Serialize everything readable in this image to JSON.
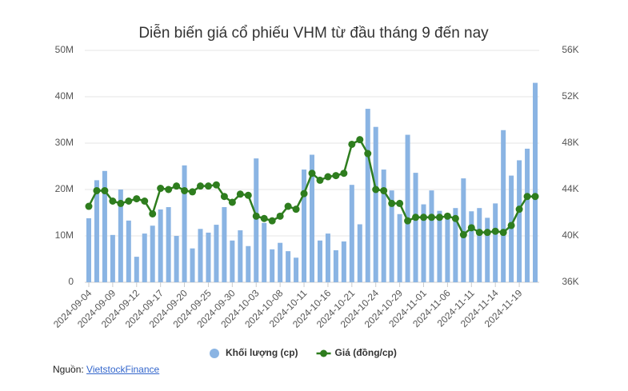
{
  "chart_data": {
    "type": "combo",
    "title": "Diễn biến giá cổ phiếu VHM từ đầu tháng 9 đến nay",
    "categories": [
      "2024-09-04",
      null,
      null,
      "2024-09-09",
      null,
      null,
      "2024-09-12",
      null,
      null,
      "2024-09-17",
      null,
      null,
      "2024-09-20",
      null,
      null,
      "2024-09-25",
      null,
      null,
      "2024-09-30",
      null,
      null,
      "2024-10-03",
      null,
      null,
      "2024-10-08",
      null,
      null,
      "2024-10-11",
      null,
      null,
      "2024-10-16",
      null,
      null,
      "2024-10-21",
      null,
      null,
      "2024-10-24",
      null,
      null,
      "2024-10-29",
      null,
      null,
      "2024-11-01",
      null,
      null,
      "2024-11-06",
      null,
      null,
      "2024-11-11",
      null,
      null,
      "2024-11-14",
      null,
      null,
      "2024-11-19",
      null,
      null
    ],
    "series": [
      {
        "name": "Khối lượng (cp)",
        "type": "bar",
        "axis": "y",
        "color": "#8ab4e3",
        "values": [
          13.8,
          22,
          24,
          10.2,
          20,
          13.3,
          5.5,
          10.5,
          12.2,
          15.7,
          16.2,
          10,
          25.2,
          7.3,
          11.5,
          10.7,
          12.4,
          16.2,
          9,
          11.2,
          7.8,
          26.7,
          12.8,
          7.1,
          8.5,
          6.7,
          5.3,
          24.3,
          27.5,
          9,
          10.5,
          6.9,
          8.8,
          21,
          12.5,
          37.4,
          33.5,
          24.3,
          19.8,
          14.7,
          31.8,
          23.6,
          16.8,
          19.8,
          15.4,
          14.7,
          16,
          22.4,
          15.3,
          16,
          13.9,
          17,
          32.8,
          23,
          26.3,
          28.8,
          43
        ]
      },
      {
        "name": "Giá (đồng/cp)",
        "type": "line",
        "axis": "y2",
        "color": "#2e7d1e",
        "values": [
          42.55,
          43.9,
          43.9,
          43.0,
          42.8,
          43.0,
          43.2,
          43.0,
          41.9,
          44.1,
          44.0,
          44.3,
          43.9,
          43.8,
          44.3,
          44.3,
          44.4,
          43.4,
          42.9,
          43.6,
          43.5,
          41.7,
          41.5,
          41.3,
          41.7,
          42.55,
          42.3,
          43.65,
          45.4,
          44.8,
          45.1,
          45.2,
          45.4,
          47.9,
          48.3,
          47.1,
          44.0,
          43.9,
          42.8,
          42.8,
          41.3,
          41.6,
          41.6,
          41.6,
          41.6,
          41.7,
          41.5,
          40.1,
          40.7,
          40.3,
          40.3,
          40.4,
          40.3,
          40.9,
          42.3,
          43.4,
          43.4
        ]
      }
    ],
    "ylim": [
      0,
      50
    ],
    "yticks": [
      0,
      {
        "value": 10,
        "label": "10M"
      },
      {
        "value": 20,
        "label": "20M"
      },
      {
        "value": 30,
        "label": "30M"
      },
      {
        "value": 40,
        "label": "40M"
      },
      {
        "value": 50,
        "label": "50M"
      }
    ],
    "y2lim": [
      36,
      56
    ],
    "y2ticks": [
      {
        "value": 36,
        "label": "36K"
      },
      {
        "value": 40,
        "label": "40K"
      },
      {
        "value": 44,
        "label": "44K"
      },
      {
        "value": 48,
        "label": "48K"
      },
      {
        "value": 52,
        "label": "52K"
      },
      {
        "value": 56,
        "label": "56K"
      }
    ],
    "grid": true,
    "legend": "bottom"
  },
  "source": {
    "prefix": "Nguồn:",
    "link": "VietstockFinance"
  }
}
